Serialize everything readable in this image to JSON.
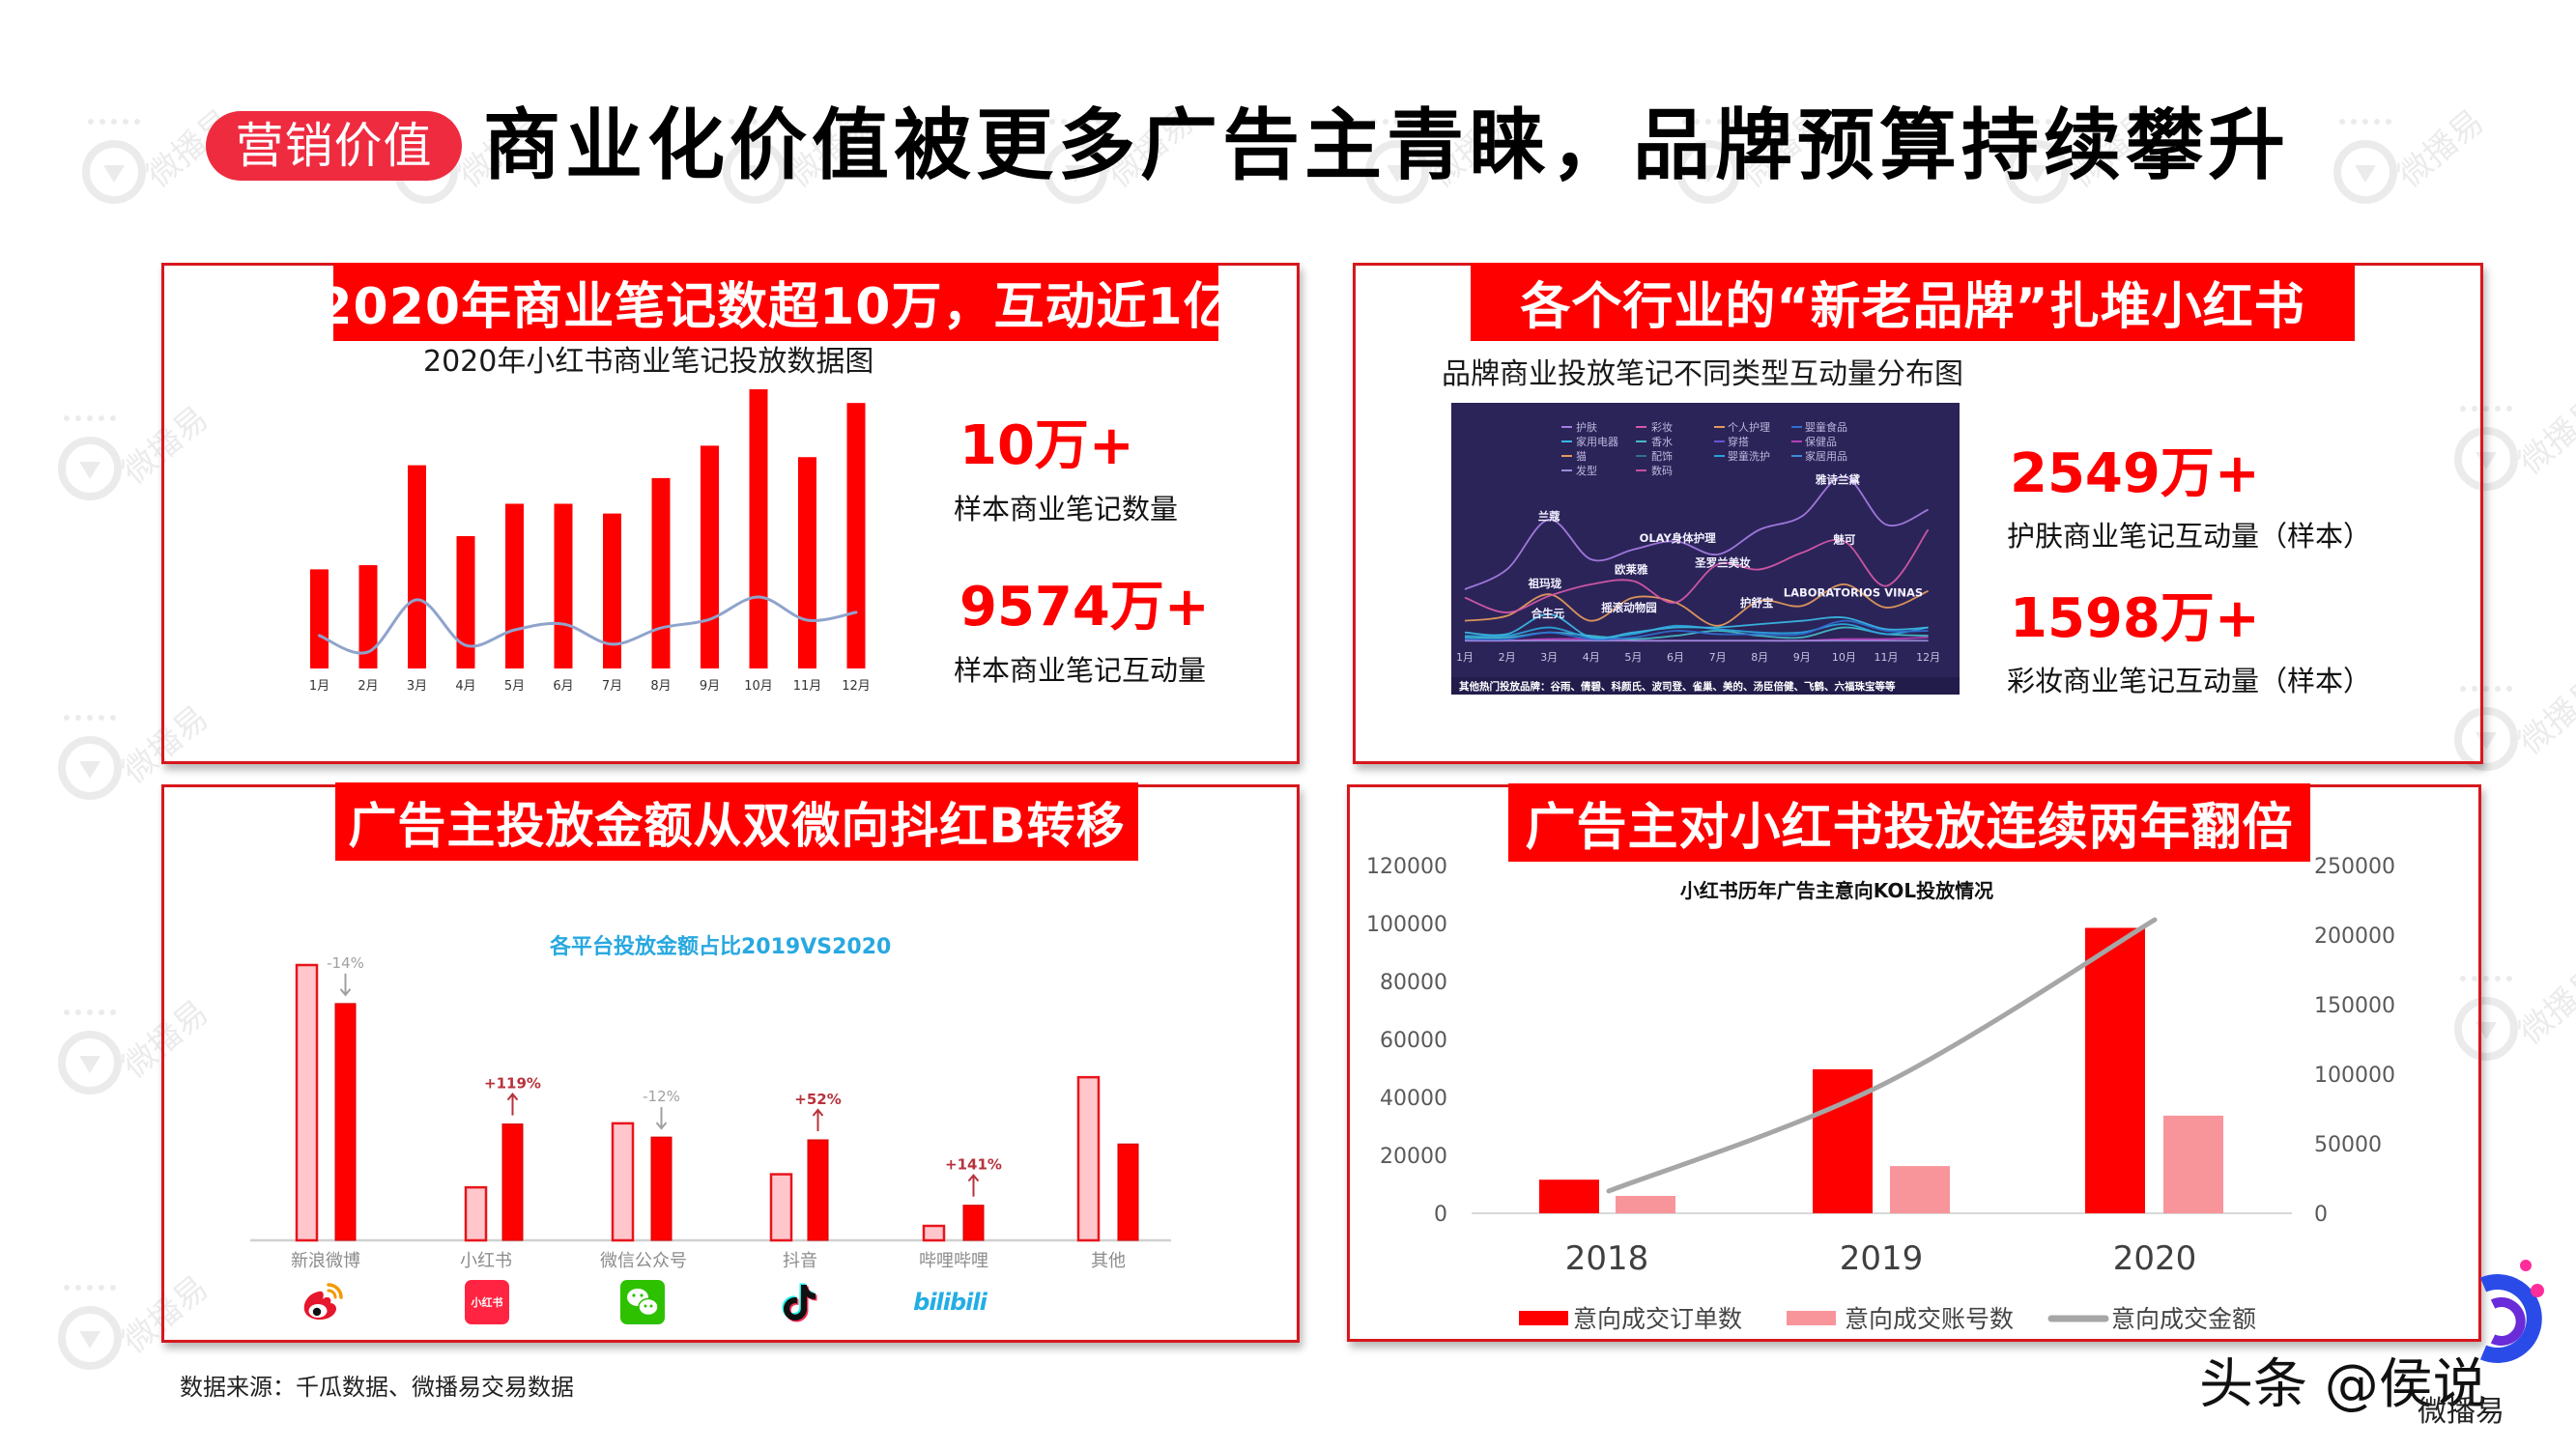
{
  "header": {
    "tag": "营销价值",
    "title": "商业化价值被更多广告主青睐，品牌预算持续攀升"
  },
  "colors": {
    "accent_red": "#FF0000",
    "tag_red": "#EF2B40",
    "panel_border": "#D8171D",
    "pink_bar": "#F8959A",
    "light_pink_bar": "#FFC7CC",
    "gray_line": "#A6A6A6",
    "trend_line": "#8FA3CC",
    "dark_chart_bg": "#2B2458",
    "platform_title_blue": "#28A8E0",
    "positive_change": "#B8323C",
    "negative_change": "#A0A0A0"
  },
  "panels": {
    "notes": {
      "banner": "2020年商业笔记数超10万，互动近1亿",
      "stats": [
        {
          "value": "10万+",
          "label": "样本商业笔记数量"
        },
        {
          "value": "9574万+",
          "label": "样本商业笔记互动量"
        }
      ]
    },
    "brands": {
      "banner": "各个行业的“新老品牌”扎堆小红书",
      "stats": [
        {
          "value": "2549万+",
          "label": "护肤商业笔记互动量（样本）"
        },
        {
          "value": "1598万+",
          "label": "彩妆商业笔记互动量（样本）"
        }
      ]
    },
    "platforms": {
      "banner": "广告主投放金额从双微向抖红B转移",
      "icons": [
        {
          "icon": "weibo-icon"
        },
        {
          "icon": "xiaohongshu-icon",
          "text": "小红书"
        },
        {
          "icon": "wechat-icon"
        },
        {
          "icon": "douyin-icon"
        },
        {
          "icon": "bilibili-icon",
          "text": "bilibili"
        }
      ]
    },
    "kol": {
      "banner": "广告主对小红书投放连续两年翻倍"
    }
  },
  "footer": {
    "source": "数据来源：千瓜数据、微播易交易数据"
  },
  "watermark": {
    "author": "头条 @侯说",
    "brand": "微播易"
  },
  "chart_data": [
    {
      "type": "bar",
      "title": "2020年小红书商业笔记投放数据图",
      "categories": [
        "1月",
        "2月",
        "3月",
        "4月",
        "5月",
        "6月",
        "7月",
        "8月",
        "9月",
        "10月",
        "11月",
        "12月"
      ],
      "series": [
        {
          "name": "",
          "type": "bar",
          "color": "#FF0000",
          "values": [
            35.5,
            37,
            72.8,
            47.4,
            59,
            59,
            55.5,
            68.2,
            79.8,
            100,
            75.7,
            95.1
          ]
        },
        {
          "name": "",
          "type": "line",
          "color": "#8FA3CC",
          "values": [
            11.8,
            5.9,
            24.6,
            8.3,
            13.8,
            15.9,
            8.7,
            14.5,
            17.6,
            25.6,
            17.3,
            20.1
          ]
        }
      ],
      "xlabel": "",
      "ylabel": "",
      "ylim": [
        0,
        100
      ],
      "grid": false,
      "legend": "none"
    },
    {
      "type": "line",
      "title": "品牌商业投放笔记不同类型互动量分布图",
      "categories": [
        "1月",
        "2月",
        "3月",
        "4月",
        "5月",
        "6月",
        "7月",
        "8月",
        "9月",
        "10月",
        "11月",
        "12月"
      ],
      "legend": [
        "护肤",
        "彩妆",
        "个人护理",
        "婴童食品",
        "家用电器",
        "香水",
        "穿搭",
        "保健品",
        "猫",
        "配饰",
        "婴童洗护",
        "家居用品",
        "发型",
        "数码"
      ],
      "legend_colors": [
        "#A47BE0",
        "#D458A8",
        "#E39A5C",
        "#2E6FD1",
        "#39B6E3",
        "#45B9C6",
        "#6B55D3",
        "#B440B8",
        "#E39A5C",
        "#2F6F8F",
        "#2AA3DB",
        "#3C8DD6",
        "#9C8CDC",
        "#C8509E"
      ],
      "legend_position": "top",
      "series": [
        {
          "name": "保健品",
          "values": [
            1,
            1,
            2,
            2,
            1,
            1,
            1,
            1,
            1,
            2,
            2,
            3
          ]
        },
        {
          "name": "发型",
          "values": [
            1,
            1,
            1,
            1,
            1,
            1,
            1,
            1,
            1,
            1,
            1,
            1
          ]
        },
        {
          "name": "香水",
          "values": [
            3,
            3,
            6,
            4,
            2,
            4,
            7,
            4,
            3,
            9,
            5,
            4
          ]
        },
        {
          "name": "婴童洗护",
          "values": [
            4,
            4,
            9,
            3,
            5,
            10,
            8,
            6,
            6,
            11,
            5,
            9
          ]
        },
        {
          "name": "婴童食品",
          "values": [
            2,
            2,
            6,
            2,
            3,
            7,
            5,
            5,
            5,
            13,
            7,
            7
          ]
        },
        {
          "name": "家用电器",
          "values": [
            6,
            5,
            17,
            3,
            6,
            9,
            9,
            11,
            13,
            15,
            8,
            9
          ]
        },
        {
          "name": "个人护理",
          "values": [
            13,
            16,
            29,
            13,
            27,
            24,
            10,
            25,
            22,
            35,
            21,
            31
          ]
        },
        {
          "name": "彩妆",
          "values": [
            27,
            18,
            28,
            35,
            37,
            24,
            47,
            44,
            54,
            61,
            34,
            68
          ]
        },
        {
          "name": "护肤",
          "values": [
            32,
            44,
            74,
            50,
            56,
            61,
            53,
            68,
            76,
            100,
            71,
            80
          ]
        }
      ],
      "annotations": [
        {
          "text": "兰蔻",
          "x": 2.0,
          "y": 76
        },
        {
          "text": "祖玛珑",
          "x": 1.9,
          "y": 35.5
        },
        {
          "text": "合生元",
          "x": 1.97,
          "y": 17.5
        },
        {
          "text": "欧莱雅",
          "x": 3.95,
          "y": 44
        },
        {
          "text": "摇滚动物园",
          "x": 3.9,
          "y": 21
        },
        {
          "text": "OLAY身体护理",
          "x": 5.05,
          "y": 63
        },
        {
          "text": "圣罗兰美妆",
          "x": 6.12,
          "y": 48
        },
        {
          "text": "护舒宝",
          "x": 6.93,
          "y": 24
        },
        {
          "text": "雅诗兰黛",
          "x": 8.85,
          "y": 98
        },
        {
          "text": "魅可",
          "x": 9.01,
          "y": 62
        },
        {
          "text": "LABORATORIOS VINAS",
          "x": 9.22,
          "y": 30
        }
      ],
      "footnote": "其他热门投放品牌：谷雨、倩碧、科颜氏、波司登、雀巢、美的、汤臣倍健、飞鹤、六福珠宝等等",
      "xlabel": "",
      "ylabel": "",
      "ylim": [
        0,
        100
      ],
      "grid": false
    },
    {
      "type": "bar",
      "title": "各平台投放金额占比2019VS2020",
      "categories": [
        "新浪微博",
        "小红书",
        "微信公众号",
        "抖音",
        "哔哩哔哩",
        "其他"
      ],
      "series": [
        {
          "name": "2019",
          "color": "#FFC7CC",
          "values": [
            40,
            7.7,
            17,
            9.6,
            2.1,
            23.7
          ]
        },
        {
          "name": "2020",
          "color": "#FF0000",
          "values": [
            34.4,
            16.9,
            15,
            14.6,
            5.1,
            14
          ]
        }
      ],
      "annotations": [
        "-14%",
        "+119%",
        "-12%",
        "+52%",
        "+141%",
        ""
      ],
      "xlabel": "",
      "ylabel": "",
      "ylim": [
        0,
        40
      ],
      "grid": false,
      "legend": "none"
    },
    {
      "type": "bar",
      "title": "小红书历年广告主意向KOL投放情况",
      "categories": [
        "2018",
        "2019",
        "2020"
      ],
      "series": [
        {
          "name": "意向成交订单数",
          "type": "bar",
          "axis": "left",
          "color": "#FF0000",
          "values": [
            11600,
            49700,
            98500
          ]
        },
        {
          "name": "意向成交账号数",
          "type": "bar",
          "axis": "left",
          "color": "#F8959A",
          "values": [
            6000,
            16300,
            33700
          ]
        },
        {
          "name": "意向成交金额",
          "type": "line",
          "axis": "right",
          "color": "#A6A6A6",
          "values": [
            16000,
            92000,
            211000
          ]
        }
      ],
      "y_left_ticks": [
        0,
        20000,
        40000,
        60000,
        80000,
        100000,
        120000
      ],
      "y_right_ticks": [
        0,
        50000,
        100000,
        150000,
        200000,
        250000
      ],
      "ylim": [
        0,
        120000
      ],
      "ylim_right": [
        0,
        250000
      ],
      "xlabel": "",
      "ylabel": "",
      "grid": false,
      "legend": "bottom"
    }
  ]
}
